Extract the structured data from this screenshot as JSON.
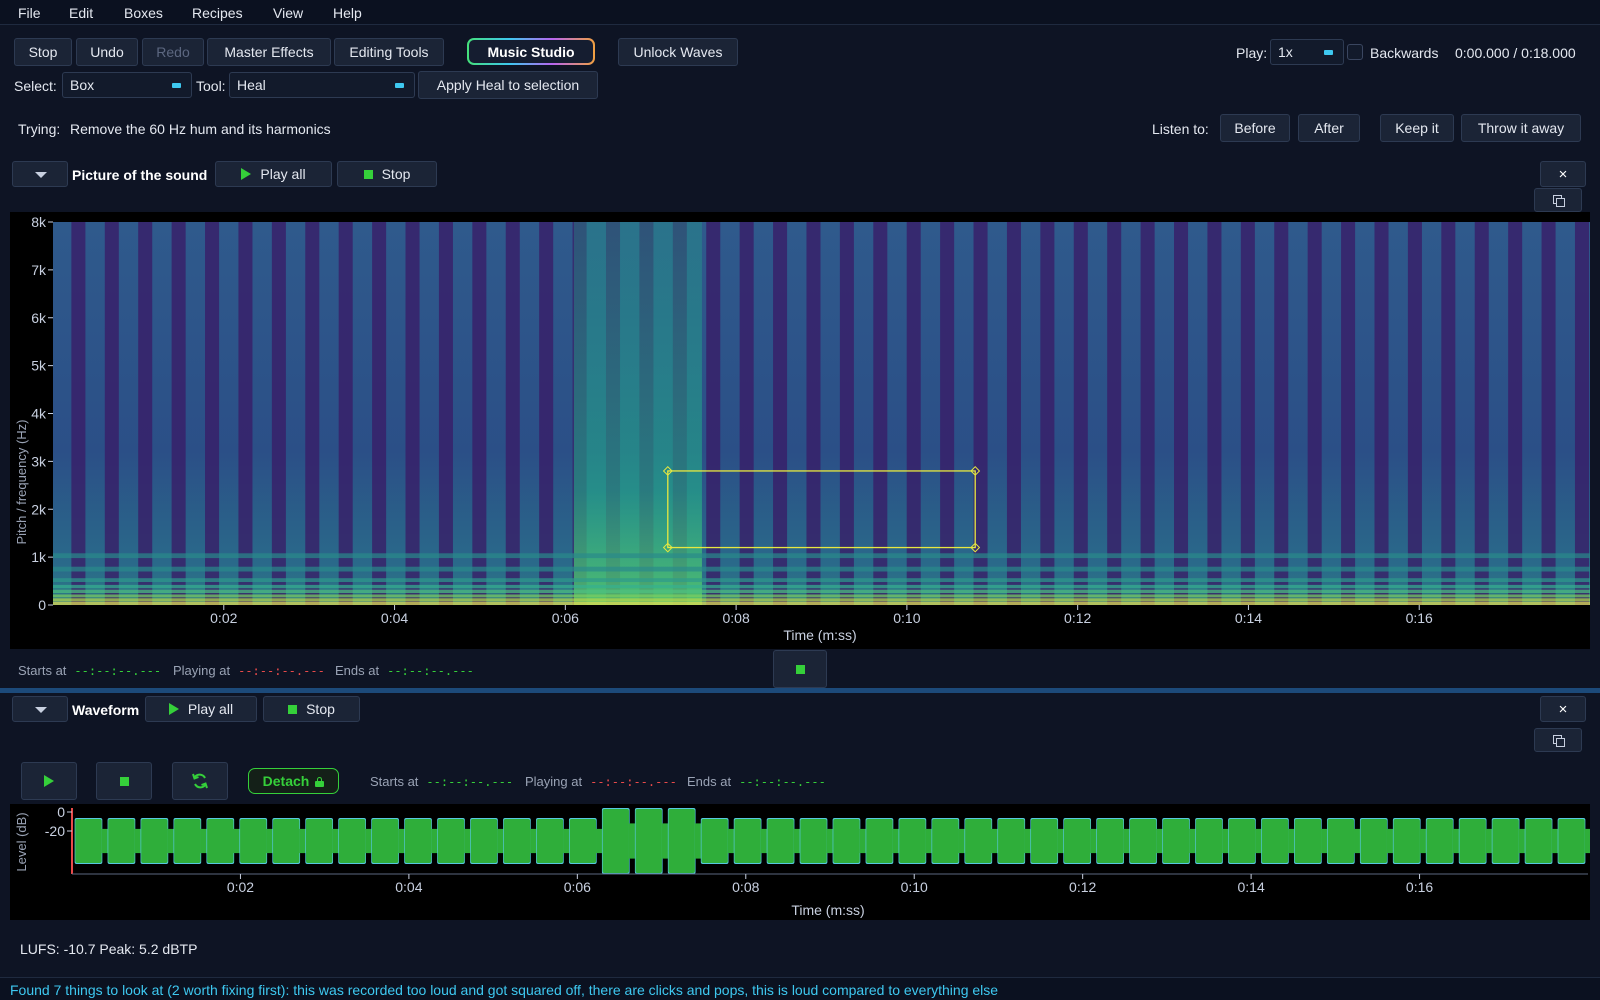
{
  "menu": [
    "File",
    "Edit",
    "Boxes",
    "Recipes",
    "View",
    "Help"
  ],
  "toolbar": {
    "stop": "Stop",
    "undo": "Undo",
    "redo": "Redo",
    "master_effects": "Master Effects",
    "editing_tools": "Editing Tools",
    "music_studio": "Music Studio",
    "unlock_waves": "Unlock Waves",
    "play_label": "Play:",
    "play_speed": "1x",
    "backwards_label": "Backwards",
    "time_readout": "0:00.000 / 0:18.000"
  },
  "select_row": {
    "select_label": "Select:",
    "select_value": "Box",
    "tool_label": "Tool:",
    "tool_value": "Heal",
    "apply_button": "Apply Heal to selection"
  },
  "trying": {
    "label": "Trying:",
    "text": "Remove the 60 Hz hum and its harmonics",
    "listen_label": "Listen to:",
    "before": "Before",
    "after": "After",
    "keep": "Keep it",
    "throw": "Throw it away"
  },
  "spectrogram_panel": {
    "title": "Picture of the sound",
    "play_all": "Play all",
    "stop": "Stop",
    "close": "×",
    "starts_label": "Starts at",
    "starts_value": "--:--:--.---",
    "playing_label": "Playing at",
    "playing_value": "--:--:--.---",
    "ends_label": "Ends at",
    "ends_value": "--:--:--.---"
  },
  "waveform_panel": {
    "title": "Waveform",
    "play_all": "Play all",
    "stop": "Stop",
    "close": "×",
    "detach": "Detach",
    "starts_label": "Starts at",
    "starts_value": "--:--:--.---",
    "playing_label": "Playing at",
    "playing_value": "--:--:--.---",
    "ends_label": "Ends at",
    "ends_value": "--:--:--.---"
  },
  "chart_data": [
    {
      "type": "heatmap",
      "name": "spectrogram",
      "xlabel": "Time (m:ss)",
      "ylabel": "Pitch / frequency (Hz)",
      "x_ticks": [
        "0:02",
        "0:04",
        "0:06",
        "0:08",
        "0:10",
        "0:12",
        "0:14",
        "0:16"
      ],
      "x_tick_values": [
        2,
        4,
        6,
        8,
        10,
        12,
        14,
        16
      ],
      "y_ticks": [
        "0",
        "1k",
        "2k",
        "3k",
        "4k",
        "5k",
        "6k",
        "7k",
        "8k"
      ],
      "y_tick_values": [
        0,
        1000,
        2000,
        3000,
        4000,
        5000,
        6000,
        7000,
        8000
      ],
      "xlim": [
        0,
        18
      ],
      "ylim": [
        0,
        8000
      ],
      "selection_box": {
        "t_start": 7.2,
        "t_end": 10.8,
        "f_low": 1200,
        "f_high": 2800
      },
      "loud_region": [
        6.1,
        7.6
      ]
    },
    {
      "type": "area",
      "name": "waveform",
      "xlabel": "Time (m:ss)",
      "ylabel": "Level (dB)",
      "x_ticks": [
        "0:02",
        "0:04",
        "0:06",
        "0:08",
        "0:10",
        "0:12",
        "0:14",
        "0:16"
      ],
      "x_tick_values": [
        2,
        4,
        6,
        8,
        10,
        12,
        14,
        16
      ],
      "y_ticks": [
        "0",
        "-20"
      ],
      "y_tick_values": [
        0,
        -20
      ],
      "xlim": [
        0,
        18
      ],
      "loud_region": [
        6.1,
        7.6
      ]
    }
  ],
  "loudness": "LUFS: -10.7  Peak: 5.2 dBTP",
  "status": "Found 7 things to look at (2 worth fixing first): this was recorded too loud and got squared off, there are clicks and pops, this is loud compared to everything else",
  "colors": {
    "background": "#0e1424",
    "accent": "#3ec8f0",
    "green": "#35d03a",
    "red": "#e84a4a",
    "selection": "#e8e840"
  }
}
